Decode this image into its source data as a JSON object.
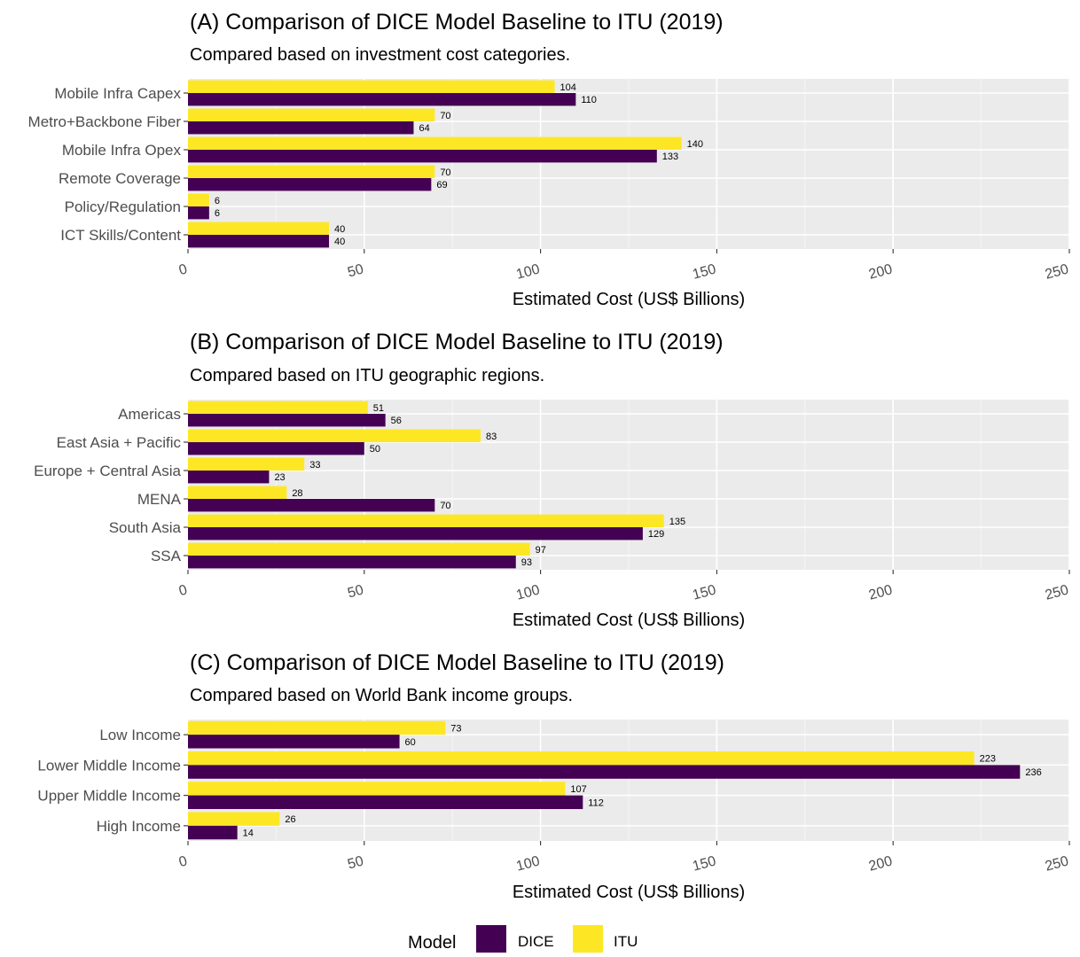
{
  "chart_data": [
    {
      "type": "bar",
      "orientation": "horizontal",
      "title": "(A) Comparison of DICE Model Baseline to ITU (2019)",
      "subtitle": "Compared based on investment cost categories.",
      "xlabel": "Estimated Cost (US$ Billions)",
      "ylabel": "",
      "xlim": [
        0,
        250
      ],
      "xticks": [
        "0",
        "50",
        "100",
        "150",
        "200",
        "250"
      ],
      "categories": [
        "Mobile Infra Capex",
        "Metro+Backbone Fiber",
        "Mobile Infra Opex",
        "Remote Coverage",
        "Policy/Regulation",
        "ICT Skills/Content"
      ],
      "series": [
        {
          "name": "ITU",
          "color": "#fde725",
          "values": [
            104,
            70,
            140,
            70,
            6,
            40
          ]
        },
        {
          "name": "DICE",
          "color": "#440154",
          "values": [
            110,
            64,
            133,
            69,
            6,
            40
          ]
        }
      ],
      "grid": true
    },
    {
      "type": "bar",
      "orientation": "horizontal",
      "title": "(B) Comparison of DICE Model Baseline to ITU (2019)",
      "subtitle": "Compared based on ITU geographic regions.",
      "xlabel": "Estimated Cost (US$ Billions)",
      "ylabel": "",
      "xlim": [
        0,
        250
      ],
      "xticks": [
        "0",
        "50",
        "100",
        "150",
        "200",
        "250"
      ],
      "categories": [
        "Americas",
        "East Asia + Pacific",
        "Europe + Central Asia",
        "MENA",
        "South Asia",
        "SSA"
      ],
      "series": [
        {
          "name": "ITU",
          "color": "#fde725",
          "values": [
            51,
            83,
            33,
            28,
            135,
            97
          ]
        },
        {
          "name": "DICE",
          "color": "#440154",
          "values": [
            56,
            50,
            23,
            70,
            129,
            93
          ]
        }
      ],
      "grid": true
    },
    {
      "type": "bar",
      "orientation": "horizontal",
      "title": "(C) Comparison of DICE Model Baseline to ITU (2019)",
      "subtitle": "Compared based on World Bank income groups.",
      "xlabel": "Estimated Cost (US$ Billions)",
      "ylabel": "",
      "xlim": [
        0,
        250
      ],
      "xticks": [
        "0",
        "50",
        "100",
        "150",
        "200",
        "250"
      ],
      "categories": [
        "Low Income",
        "Lower Middle Income",
        "Upper Middle Income",
        "High Income"
      ],
      "series": [
        {
          "name": "ITU",
          "color": "#fde725",
          "values": [
            73,
            223,
            107,
            26
          ]
        },
        {
          "name": "DICE",
          "color": "#440154",
          "values": [
            60,
            236,
            112,
            14
          ]
        }
      ],
      "grid": true
    }
  ],
  "legend": {
    "title": "Model",
    "placement": "bottom",
    "items": [
      {
        "label": "DICE",
        "color": "#440154"
      },
      {
        "label": "ITU",
        "color": "#fde725"
      }
    ]
  }
}
